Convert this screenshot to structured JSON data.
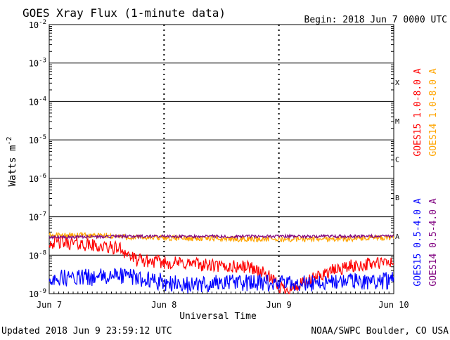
{
  "chart_data": {
    "type": "line",
    "title": "GOES Xray Flux (1-minute data)",
    "begin_label": "Begin:  2018 Jun 7 0000 UTC",
    "xlabel": "Universal Time",
    "ylabel": "Watts m",
    "ylabel_sup": "-2",
    "y_scale": "log",
    "ylim": [
      1e-09,
      0.01
    ],
    "y_ticks": [
      {
        "value": 0.01,
        "base": "10",
        "exp": "-2"
      },
      {
        "value": 0.001,
        "base": "10",
        "exp": "-3"
      },
      {
        "value": 0.0001,
        "base": "10",
        "exp": "-4"
      },
      {
        "value": 1e-05,
        "base": "10",
        "exp": "-5"
      },
      {
        "value": 1e-06,
        "base": "10",
        "exp": "-6"
      },
      {
        "value": 1e-07,
        "base": "10",
        "exp": "-7"
      },
      {
        "value": 1e-08,
        "base": "10",
        "exp": "-8"
      },
      {
        "value": 1e-09,
        "base": "10",
        "exp": "-9"
      }
    ],
    "x_range_days": [
      "2018-06-07",
      "2018-06-10"
    ],
    "x_ticks": [
      "Jun 7",
      "Jun 8",
      "Jun 9",
      "Jun 10"
    ],
    "flare_classes": [
      {
        "label": "X",
        "value": 0.0001
      },
      {
        "label": "M",
        "value": 1e-05
      },
      {
        "label": "C",
        "value": 1e-06
      },
      {
        "label": "B",
        "value": 1e-07
      },
      {
        "label": "A",
        "value": 1e-08
      }
    ],
    "grid": true,
    "series": [
      {
        "name": "GOES15 1.0-8.0 A",
        "color": "#ff0000",
        "points": [
          {
            "t": 0.0,
            "y": 2.2e-08
          },
          {
            "t": 0.25,
            "y": 2e-08
          },
          {
            "t": 0.5,
            "y": 1.6e-08
          },
          {
            "t": 0.62,
            "y": 1.5e-08
          },
          {
            "t": 0.75,
            "y": 7.5e-09
          },
          {
            "t": 1.0,
            "y": 6.5e-09
          },
          {
            "t": 1.25,
            "y": 6e-09
          },
          {
            "t": 1.5,
            "y": 5e-09
          },
          {
            "t": 1.75,
            "y": 5e-09
          },
          {
            "t": 1.9,
            "y": 3e-09
          },
          {
            "t": 2.0,
            "y": 1.5e-09
          },
          {
            "t": 2.1,
            "y": 1.3e-09
          },
          {
            "t": 2.25,
            "y": 2e-09
          },
          {
            "t": 2.4,
            "y": 3.5e-09
          },
          {
            "t": 2.6,
            "y": 5e-09
          },
          {
            "t": 2.8,
            "y": 6e-09
          },
          {
            "t": 3.0,
            "y": 6.5e-09
          }
        ]
      },
      {
        "name": "GOES14 1.0-8.0 A",
        "color": "#ffa500",
        "points": [
          {
            "t": 0.0,
            "y": 3.3e-08
          },
          {
            "t": 0.5,
            "y": 3.2e-08
          },
          {
            "t": 0.75,
            "y": 2.9e-08
          },
          {
            "t": 1.0,
            "y": 2.8e-08
          },
          {
            "t": 1.5,
            "y": 2.7e-08
          },
          {
            "t": 2.0,
            "y": 2.6e-08
          },
          {
            "t": 2.5,
            "y": 2.7e-08
          },
          {
            "t": 3.0,
            "y": 2.8e-08
          }
        ]
      },
      {
        "name": "GOES15 0.5-4.0 A",
        "color": "#0000ff",
        "points": [
          {
            "t": 0.0,
            "y": 2.5e-09
          },
          {
            "t": 0.5,
            "y": 2.7e-09
          },
          {
            "t": 0.62,
            "y": 3e-09
          },
          {
            "t": 0.8,
            "y": 2.5e-09
          },
          {
            "t": 1.0,
            "y": 2e-09
          },
          {
            "t": 1.25,
            "y": 1.6e-09
          },
          {
            "t": 1.5,
            "y": 2e-09
          },
          {
            "t": 2.0,
            "y": 1.8e-09
          },
          {
            "t": 2.5,
            "y": 2e-09
          },
          {
            "t": 3.0,
            "y": 2.2e-09
          }
        ]
      },
      {
        "name": "GOES14 0.5-4.0 A",
        "color": "#7f007f",
        "points": [
          {
            "t": 0.0,
            "y": 3e-08
          },
          {
            "t": 1.0,
            "y": 3.1e-08
          },
          {
            "t": 2.0,
            "y": 3.1e-08
          },
          {
            "t": 3.0,
            "y": 3.1e-08
          }
        ]
      }
    ]
  },
  "footer": {
    "updated": "Updated 2018 Jun  9 23:59:12 UTC",
    "credit": "NOAA/SWPC Boulder, CO USA"
  }
}
